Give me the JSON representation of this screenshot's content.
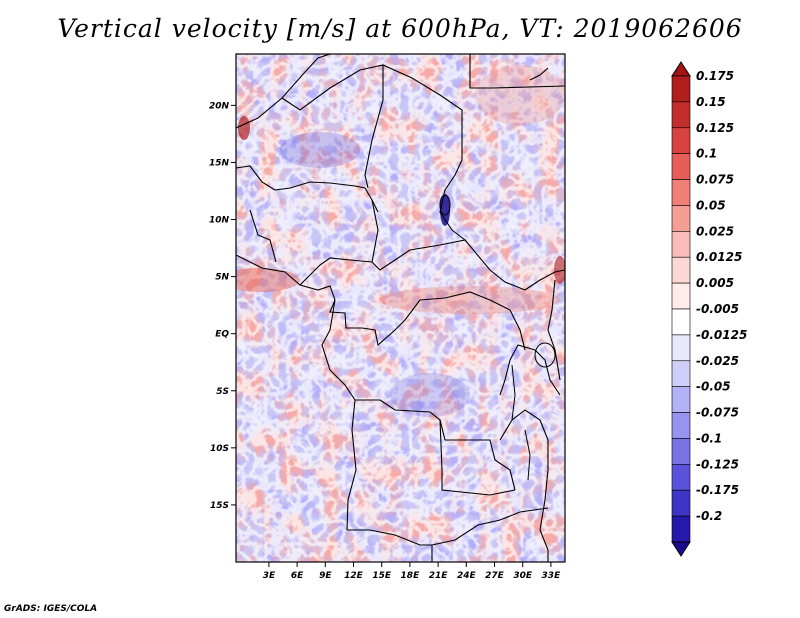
{
  "title": "Vertical velocity [m/s] at 600hPa, VT: 2019062606",
  "credit": "GrADS: IGES/COLA",
  "map": {
    "lat_range": [
      -20,
      24.5
    ],
    "lon_range": [
      -0.5,
      34.5
    ],
    "lat_ticks": [
      {
        "value": 20,
        "label": "20N"
      },
      {
        "value": 15,
        "label": "15N"
      },
      {
        "value": 10,
        "label": "10N"
      },
      {
        "value": 5,
        "label": "5N"
      },
      {
        "value": 0,
        "label": "EQ"
      },
      {
        "value": -5,
        "label": "5S"
      },
      {
        "value": -10,
        "label": "10S"
      },
      {
        "value": -15,
        "label": "15S"
      }
    ],
    "lon_ticks": [
      {
        "value": 3,
        "label": "3E"
      },
      {
        "value": 6,
        "label": "6E"
      },
      {
        "value": 9,
        "label": "9E"
      },
      {
        "value": 12,
        "label": "12E"
      },
      {
        "value": 15,
        "label": "15E"
      },
      {
        "value": 18,
        "label": "18E"
      },
      {
        "value": 21,
        "label": "21E"
      },
      {
        "value": 24,
        "label": "24E"
      },
      {
        "value": 27,
        "label": "27E"
      },
      {
        "value": 30,
        "label": "30E"
      },
      {
        "value": 33,
        "label": "33E"
      }
    ]
  },
  "colorbar": {
    "levels": [
      {
        "label": "0.175",
        "color": "#b01e1e"
      },
      {
        "label": "0.15",
        "color": "#c22e2c"
      },
      {
        "label": "0.125",
        "color": "#d64340"
      },
      {
        "label": "0.1",
        "color": "#e65e58"
      },
      {
        "label": "0.075",
        "color": "#ef7f77"
      },
      {
        "label": "0.05",
        "color": "#f59e96"
      },
      {
        "label": "0.025",
        "color": "#f9bcb6"
      },
      {
        "label": "0.0125",
        "color": "#fcd8d4"
      },
      {
        "label": "0.005",
        "color": "#feecea"
      },
      {
        "label": "-0.005",
        "color": "#ffffff"
      },
      {
        "label": "-0.0125",
        "color": "#e8e8fc"
      },
      {
        "label": "-0.025",
        "color": "#cfcffa"
      },
      {
        "label": "-0.05",
        "color": "#b4b2f6"
      },
      {
        "label": "-0.075",
        "color": "#9793ef"
      },
      {
        "label": "-0.1",
        "color": "#7872e5"
      },
      {
        "label": "-0.125",
        "color": "#5a52d8"
      },
      {
        "label": "-0.175",
        "color": "#3d35c6"
      },
      {
        "label": "-0.2",
        "color": "#2419a8"
      }
    ],
    "top_arrow_color": "#a31414",
    "bottom_arrow_color": "#1a0a8c"
  }
}
